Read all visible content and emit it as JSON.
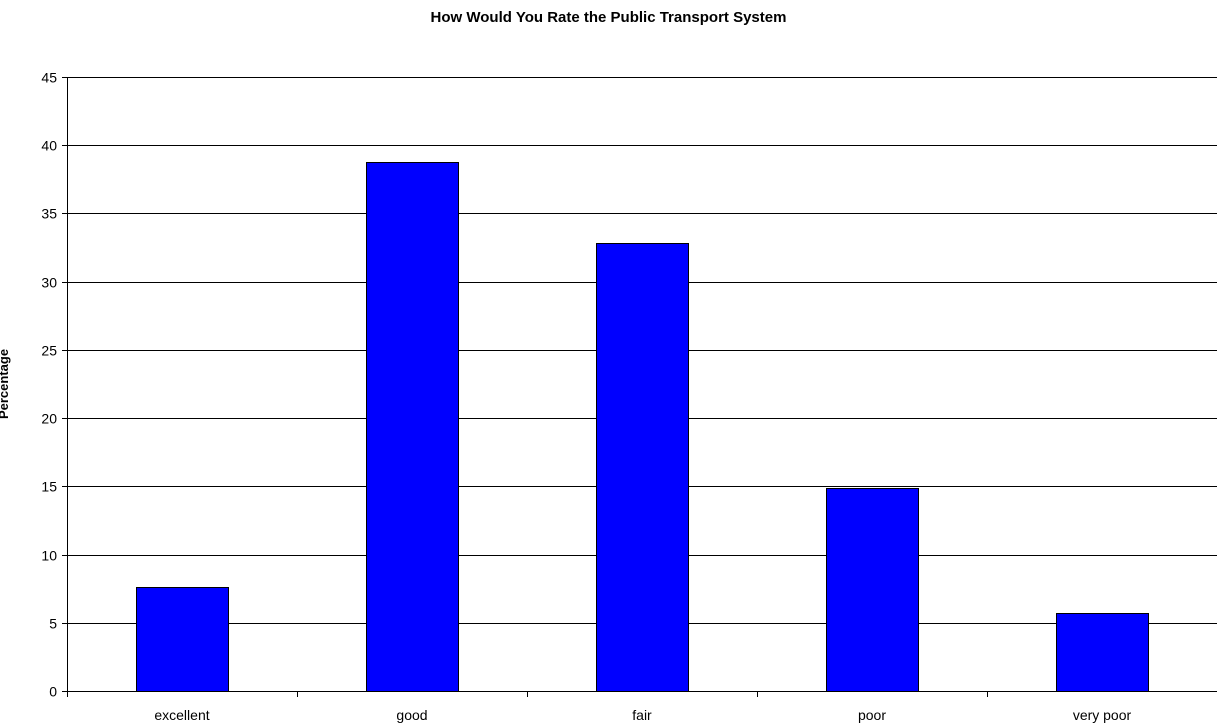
{
  "chart_data": {
    "type": "bar",
    "title": "How Would You Rate the Public Transport System",
    "xlabel": "",
    "ylabel": "Percentage",
    "categories": [
      "excellent",
      "good",
      "fair",
      "poor",
      "very poor"
    ],
    "values": [
      7.6,
      38.8,
      32.8,
      14.9,
      5.7
    ],
    "ylim": [
      0,
      45
    ],
    "yticks": [
      0,
      5,
      10,
      15,
      20,
      25,
      30,
      35,
      40,
      45
    ],
    "grid": true,
    "legend": "none",
    "bar_color": "#0000FF",
    "bar_edge_color": "#000000"
  }
}
